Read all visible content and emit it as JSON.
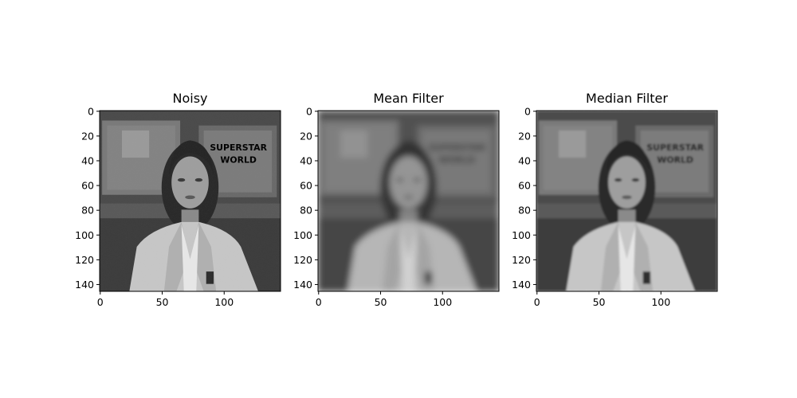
{
  "figure": {
    "panels": [
      {
        "title": "Noisy",
        "filter": "noisy",
        "x_ticks": [
          "0",
          "50",
          "100"
        ],
        "y_ticks": [
          "0",
          "20",
          "40",
          "60",
          "80",
          "100",
          "120",
          "140"
        ]
      },
      {
        "title": "Mean Filter",
        "filter": "mean",
        "x_ticks": [
          "0",
          "50",
          "100"
        ],
        "y_ticks": [
          "0",
          "20",
          "40",
          "60",
          "80",
          "100",
          "120",
          "140"
        ]
      },
      {
        "title": "Median Filter",
        "filter": "median",
        "x_ticks": [
          "0",
          "50",
          "100"
        ],
        "y_ticks": [
          "0",
          "20",
          "40",
          "60",
          "80",
          "100",
          "120",
          "140"
        ]
      }
    ],
    "image_width": 146,
    "image_height": 146,
    "sign_text": "SUPERSTAR WORLD",
    "colormap": "gray"
  }
}
